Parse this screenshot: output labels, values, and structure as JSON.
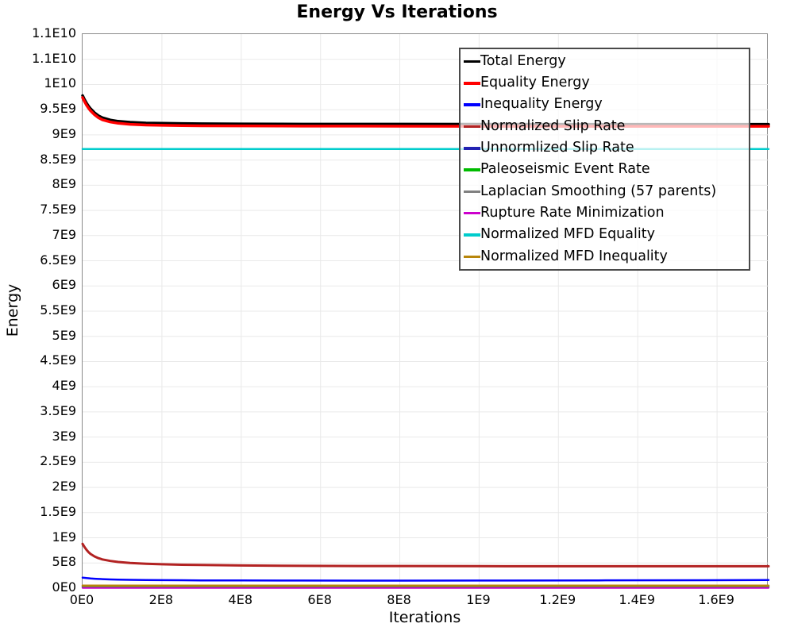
{
  "chart_data": {
    "type": "line",
    "title": "Energy Vs Iterations",
    "xlabel": "Iterations",
    "ylabel": "Energy",
    "xlim": [
      0,
      1730000000
    ],
    "ylim": [
      0,
      11000000000
    ],
    "grid": true,
    "legend_position": "top-right",
    "frame_color": "#8a8a8a",
    "grid_color": "#e9e9e9",
    "x_ticks": [
      {
        "v": 0,
        "label": "0E0"
      },
      {
        "v": 200000000,
        "label": "2E8"
      },
      {
        "v": 400000000,
        "label": "4E8"
      },
      {
        "v": 600000000,
        "label": "6E8"
      },
      {
        "v": 800000000,
        "label": "8E8"
      },
      {
        "v": 1000000000,
        "label": "1E9"
      },
      {
        "v": 1200000000,
        "label": "1.2E9"
      },
      {
        "v": 1400000000,
        "label": "1.4E9"
      },
      {
        "v": 1600000000,
        "label": "1.6E9"
      }
    ],
    "y_ticks": [
      {
        "v": 0,
        "label": "0E0"
      },
      {
        "v": 500000000,
        "label": "5E8"
      },
      {
        "v": 1000000000,
        "label": "1E9"
      },
      {
        "v": 1500000000,
        "label": "1.5E9"
      },
      {
        "v": 2000000000,
        "label": "2E9"
      },
      {
        "v": 2500000000,
        "label": "2.5E9"
      },
      {
        "v": 3000000000,
        "label": "3E9"
      },
      {
        "v": 3500000000,
        "label": "3.5E9"
      },
      {
        "v": 4000000000,
        "label": "4E9"
      },
      {
        "v": 4500000000,
        "label": "4.5E9"
      },
      {
        "v": 5000000000,
        "label": "5E9"
      },
      {
        "v": 5500000000,
        "label": "5.5E9"
      },
      {
        "v": 6000000000,
        "label": "6E9"
      },
      {
        "v": 6500000000,
        "label": "6.5E9"
      },
      {
        "v": 7000000000,
        "label": "7E9"
      },
      {
        "v": 7500000000,
        "label": "7.5E9"
      },
      {
        "v": 8000000000,
        "label": "8E9"
      },
      {
        "v": 8500000000,
        "label": "8.5E9"
      },
      {
        "v": 9000000000,
        "label": "9E9"
      },
      {
        "v": 9500000000,
        "label": "9.5E9"
      },
      {
        "v": 10000000000,
        "label": "1E10"
      },
      {
        "v": 10500000000,
        "label": "1.1E10"
      },
      {
        "v": 11000000000,
        "label": "1.1E10"
      }
    ],
    "series": [
      {
        "name": "Total Energy",
        "color": "#000000",
        "width": 3.5,
        "x": [
          0,
          5000000.0,
          10000000.0,
          15000000.0,
          20000000.0,
          30000000.0,
          40000000.0,
          50000000.0,
          70000000.0,
          90000000.0,
          120000000.0,
          160000000.0,
          200000000.0,
          250000000.0,
          300000000.0,
          400000000.0,
          500000000.0,
          700000000.0,
          1000000000.0,
          1300000000.0,
          1730000000.0
        ],
        "y": [
          9780000000.0,
          9700000000.0,
          9630000000.0,
          9570000000.0,
          9520000000.0,
          9440000000.0,
          9380000000.0,
          9340000000.0,
          9295000000.0,
          9270000000.0,
          9250000000.0,
          9235000000.0,
          9230000000.0,
          9225000000.0,
          9220000000.0,
          9218000000.0,
          9215000000.0,
          9213000000.0,
          9211000000.0,
          9210000000.0,
          9210000000.0
        ]
      },
      {
        "name": "Equality Energy",
        "color": "#ff0000",
        "width": 3.5,
        "x": [
          0,
          5000000.0,
          10000000.0,
          15000000.0,
          20000000.0,
          30000000.0,
          40000000.0,
          50000000.0,
          70000000.0,
          90000000.0,
          120000000.0,
          160000000.0,
          200000000.0,
          250000000.0,
          300000000.0,
          400000000.0,
          500000000.0,
          700000000.0,
          1000000000.0,
          1300000000.0,
          1730000000.0
        ],
        "y": [
          9740000000.0,
          9660000000.0,
          9590000000.0,
          9530000000.0,
          9480000000.0,
          9400000000.0,
          9340000000.0,
          9300000000.0,
          9255000000.0,
          9230000000.0,
          9210000000.0,
          9195000000.0,
          9190000000.0,
          9185000000.0,
          9180000000.0,
          9178000000.0,
          9175000000.0,
          9173000000.0,
          9171000000.0,
          9170000000.0,
          9170000000.0
        ]
      },
      {
        "name": "Inequality Energy",
        "color": "#0000ff",
        "width": 2.5,
        "x": [
          0,
          5000000.0,
          10000000.0,
          15000000.0,
          20000000.0,
          30000000.0,
          40000000.0,
          50000000.0,
          70000000.0,
          90000000.0,
          120000000.0,
          160000000.0,
          200000000.0,
          250000000.0,
          300000000.0,
          400000000.0,
          500000000.0,
          700000000.0,
          1000000000.0,
          1300000000.0,
          1730000000.0
        ],
        "y": [
          210000000.0,
          205000000.0,
          200000000.0,
          197000000.0,
          193000000.0,
          188000000.0,
          183000000.0,
          179000000.0,
          174000000.0,
          170000000.0,
          166000000.0,
          162000000.0,
          159000000.0,
          157000000.0,
          155000000.0,
          153000000.0,
          152000000.0,
          150000000.0,
          152000000.0,
          155000000.0,
          160000000.0
        ]
      },
      {
        "name": "Normalized Slip Rate",
        "color": "#b22222",
        "width": 3,
        "x": [
          0,
          5000000.0,
          10000000.0,
          15000000.0,
          20000000.0,
          30000000.0,
          40000000.0,
          50000000.0,
          70000000.0,
          90000000.0,
          120000000.0,
          160000000.0,
          200000000.0,
          250000000.0,
          300000000.0,
          400000000.0,
          500000000.0,
          700000000.0,
          1000000000.0,
          1300000000.0,
          1730000000.0
        ],
        "y": [
          880000000.0,
          815000000.0,
          760000000.0,
          715000000.0,
          680000000.0,
          630000000.0,
          595000000.0,
          570000000.0,
          540000000.0,
          520000000.0,
          500000000.0,
          485000000.0,
          475000000.0,
          465000000.0,
          460000000.0,
          450000000.0,
          445000000.0,
          440000000.0,
          437000000.0,
          435000000.0,
          435000000.0
        ]
      },
      {
        "name": "Unnormlized Slip Rate",
        "color": "#2222b2",
        "width": 2.5,
        "x": [
          0,
          1730000000.0
        ],
        "y": [
          25000000.0,
          25000000.0
        ]
      },
      {
        "name": "Paleoseismic Event Rate",
        "color": "#00bb00",
        "width": 2,
        "x": [
          0,
          1730000000.0
        ],
        "y": [
          15000000.0,
          15000000.0
        ]
      },
      {
        "name": "Laplacian Smoothing (57 parents)",
        "color": "#808080",
        "width": 2,
        "x": [
          0,
          1730000000.0
        ],
        "y": [
          10000000.0,
          10000000.0
        ]
      },
      {
        "name": "Rupture Rate Minimization",
        "color": "#cc00cc",
        "width": 2,
        "x": [
          0,
          1730000000.0
        ],
        "y": [
          5000000.0,
          5000000.0
        ]
      },
      {
        "name": "Normalized MFD Equality",
        "color": "#00cccc",
        "width": 2.5,
        "x": [
          0,
          1730000000.0
        ],
        "y": [
          8720000000.0,
          8720000000.0
        ]
      },
      {
        "name": "Normalized MFD Inequality",
        "color": "#b8860b",
        "width": 2.5,
        "x": [
          0,
          1730000000.0
        ],
        "y": [
          50000000.0,
          50000000.0
        ]
      }
    ]
  }
}
